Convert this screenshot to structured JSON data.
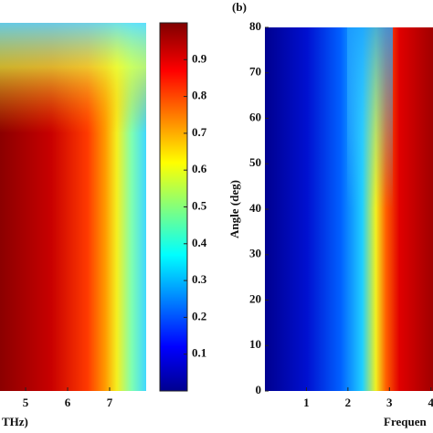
{
  "chart_data": [
    {
      "type": "heatmap",
      "xlabel": "THz)",
      "xlim": [
        4.39,
        7.87
      ],
      "xticks": [
        5,
        6,
        7
      ],
      "colorbar": {
        "clim": [
          0,
          1
        ],
        "ticks": [
          0.1,
          0.2,
          0.3,
          0.4,
          0.5,
          0.6,
          0.7,
          0.8,
          0.9
        ]
      }
    },
    {
      "type": "heatmap",
      "title": "(b)",
      "ylabel": "Angle (deg)",
      "xlabel": "Frequen",
      "xlim": [
        0,
        4.05
      ],
      "xticks": [
        1,
        2,
        3,
        4
      ],
      "ylim": [
        0,
        80
      ],
      "yticks": [
        0,
        10,
        20,
        30,
        40,
        50,
        60,
        70,
        80
      ]
    }
  ]
}
